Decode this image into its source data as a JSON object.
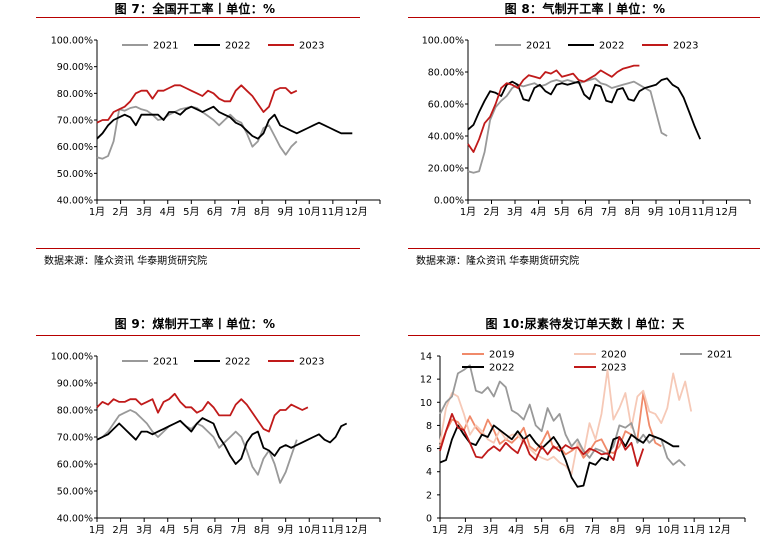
{
  "source_text": "数据来源：隆众资讯 华泰期货研究院",
  "colors": {
    "s2019": "#f08a6a",
    "s2020": "#f6c9b7",
    "s2021": "#999999",
    "s2022": "#000000",
    "s2023": "#c01a1a",
    "rule": "#b70000"
  },
  "chart_data": [
    {
      "type": "line",
      "title": "图 7：全国开工率丨单位：%",
      "xlabel": "",
      "ylabel": "",
      "months": [
        "1月",
        "2月",
        "3月",
        "4月",
        "5月",
        "6月",
        "7月",
        "8月",
        "9月",
        "10月",
        "11月",
        "12月"
      ],
      "ylim": [
        0.4,
        1.0
      ],
      "yticks": [
        0.4,
        0.5,
        0.6,
        0.7,
        0.8,
        0.9,
        1.0
      ],
      "ytick_labels": [
        "40.00%",
        "50.00%",
        "60.00%",
        "70.00%",
        "80.00%",
        "90.00%",
        "100.00%"
      ],
      "legend_position": "top",
      "series": [
        {
          "name": "2021",
          "color": "#999999",
          "values": [
            0.56,
            0.555,
            0.565,
            0.62,
            0.74,
            0.735,
            0.745,
            0.75,
            0.74,
            0.735,
            0.72,
            0.7,
            0.705,
            0.72,
            0.73,
            0.74,
            0.745,
            0.75,
            0.745,
            0.73,
            0.715,
            0.7,
            0.68,
            0.7,
            0.72,
            0.7,
            0.69,
            0.65,
            0.6,
            0.62,
            0.67,
            0.68,
            0.64,
            0.6,
            0.57,
            0.6,
            0.62
          ]
        },
        {
          "name": "2022",
          "color": "#000000",
          "values": [
            0.63,
            0.65,
            0.68,
            0.7,
            0.71,
            0.72,
            0.71,
            0.68,
            0.72,
            0.72,
            0.72,
            0.72,
            0.7,
            0.73,
            0.73,
            0.72,
            0.74,
            0.75,
            0.74,
            0.73,
            0.74,
            0.75,
            0.73,
            0.72,
            0.71,
            0.69,
            0.68,
            0.66,
            0.64,
            0.63,
            0.65,
            0.7,
            0.72,
            0.68,
            0.67,
            0.66,
            0.65,
            0.66,
            0.67,
            0.68,
            0.69,
            0.68,
            0.67,
            0.66,
            0.65,
            0.65,
            0.65
          ]
        },
        {
          "name": "2023",
          "color": "#c01a1a",
          "values": [
            0.69,
            0.7,
            0.7,
            0.73,
            0.74,
            0.75,
            0.77,
            0.8,
            0.81,
            0.81,
            0.78,
            0.81,
            0.81,
            0.82,
            0.83,
            0.83,
            0.82,
            0.81,
            0.8,
            0.79,
            0.81,
            0.8,
            0.78,
            0.77,
            0.77,
            0.81,
            0.83,
            0.81,
            0.79,
            0.76,
            0.73,
            0.75,
            0.81,
            0.82,
            0.82,
            0.8,
            0.81
          ]
        }
      ]
    },
    {
      "type": "line",
      "title": "图 8：气制开工率丨单位：%",
      "xlabel": "",
      "ylabel": "",
      "months": [
        "1月",
        "2月",
        "3月",
        "4月",
        "5月",
        "6月",
        "7月",
        "8月",
        "9月",
        "10月",
        "11月",
        "12月"
      ],
      "ylim": [
        0.0,
        1.0
      ],
      "yticks": [
        0,
        0.2,
        0.4,
        0.6,
        0.8,
        1.0
      ],
      "ytick_labels": [
        "0.00%",
        "20.00%",
        "40.00%",
        "60.00%",
        "80.00%",
        "100.00%"
      ],
      "legend_position": "top",
      "series": [
        {
          "name": "2021",
          "color": "#999999",
          "values": [
            0.18,
            0.17,
            0.18,
            0.3,
            0.5,
            0.58,
            0.62,
            0.65,
            0.7,
            0.72,
            0.71,
            0.72,
            0.73,
            0.71,
            0.72,
            0.74,
            0.75,
            0.74,
            0.75,
            0.74,
            0.73,
            0.74,
            0.75,
            0.76,
            0.73,
            0.72,
            0.7,
            0.71,
            0.72,
            0.73,
            0.74,
            0.72,
            0.7,
            0.68,
            0.55,
            0.42,
            0.4
          ]
        },
        {
          "name": "2022",
          "color": "#000000",
          "values": [
            0.44,
            0.47,
            0.55,
            0.62,
            0.68,
            0.67,
            0.65,
            0.72,
            0.74,
            0.72,
            0.63,
            0.62,
            0.7,
            0.72,
            0.68,
            0.66,
            0.72,
            0.73,
            0.72,
            0.73,
            0.74,
            0.66,
            0.63,
            0.72,
            0.71,
            0.62,
            0.61,
            0.69,
            0.7,
            0.63,
            0.62,
            0.68,
            0.7,
            0.71,
            0.72,
            0.75,
            0.76,
            0.72,
            0.7,
            0.64,
            0.55,
            0.46,
            0.38
          ]
        },
        {
          "name": "2023",
          "color": "#c01a1a",
          "values": [
            0.35,
            0.3,
            0.38,
            0.48,
            0.52,
            0.6,
            0.7,
            0.73,
            0.72,
            0.7,
            0.75,
            0.78,
            0.77,
            0.76,
            0.8,
            0.79,
            0.81,
            0.77,
            0.78,
            0.79,
            0.75,
            0.74,
            0.76,
            0.78,
            0.81,
            0.79,
            0.77,
            0.8,
            0.82,
            0.83,
            0.84,
            0.84
          ]
        }
      ]
    },
    {
      "type": "line",
      "title": "图 9：煤制开工率丨单位：%",
      "xlabel": "",
      "ylabel": "",
      "months": [
        "1月",
        "2月",
        "3月",
        "4月",
        "5月",
        "6月",
        "7月",
        "8月",
        "9月",
        "10月",
        "11月",
        "12月"
      ],
      "ylim": [
        0.4,
        1.0
      ],
      "yticks": [
        0.4,
        0.5,
        0.6,
        0.7,
        0.8,
        0.9,
        1.0
      ],
      "ytick_labels": [
        "40.00%",
        "50.00%",
        "60.00%",
        "70.00%",
        "80.00%",
        "90.00%",
        "100.00%"
      ],
      "legend_position": "top",
      "series": [
        {
          "name": "2021",
          "color": "#999999",
          "values": [
            0.69,
            0.7,
            0.72,
            0.75,
            0.78,
            0.79,
            0.8,
            0.79,
            0.77,
            0.75,
            0.72,
            0.7,
            0.72,
            0.74,
            0.75,
            0.76,
            0.74,
            0.73,
            0.75,
            0.74,
            0.72,
            0.7,
            0.66,
            0.68,
            0.7,
            0.72,
            0.7,
            0.65,
            0.59,
            0.56,
            0.62,
            0.65,
            0.6,
            0.53,
            0.57,
            0.63,
            0.69
          ]
        },
        {
          "name": "2022",
          "color": "#000000",
          "values": [
            0.69,
            0.7,
            0.71,
            0.73,
            0.75,
            0.73,
            0.71,
            0.69,
            0.72,
            0.72,
            0.71,
            0.72,
            0.73,
            0.74,
            0.75,
            0.76,
            0.74,
            0.72,
            0.75,
            0.77,
            0.76,
            0.75,
            0.7,
            0.67,
            0.63,
            0.6,
            0.62,
            0.68,
            0.71,
            0.72,
            0.66,
            0.65,
            0.63,
            0.66,
            0.67,
            0.66,
            0.67,
            0.68,
            0.69,
            0.7,
            0.71,
            0.69,
            0.68,
            0.7,
            0.74,
            0.75
          ]
        },
        {
          "name": "2023",
          "color": "#c01a1a",
          "values": [
            0.81,
            0.83,
            0.82,
            0.84,
            0.83,
            0.83,
            0.84,
            0.84,
            0.82,
            0.83,
            0.84,
            0.79,
            0.83,
            0.84,
            0.86,
            0.83,
            0.81,
            0.81,
            0.79,
            0.8,
            0.83,
            0.81,
            0.78,
            0.78,
            0.78,
            0.82,
            0.84,
            0.82,
            0.79,
            0.76,
            0.73,
            0.72,
            0.78,
            0.8,
            0.8,
            0.82,
            0.81,
            0.8,
            0.81
          ]
        }
      ]
    },
    {
      "type": "line",
      "title": "图 10:尿素待发订单天数丨单位：天",
      "xlabel": "",
      "ylabel": "",
      "months": [
        "1月",
        "2月",
        "3月",
        "4月",
        "5月",
        "6月",
        "7月",
        "8月",
        "9月",
        "10月",
        "11月",
        "12月"
      ],
      "ylim": [
        0,
        14
      ],
      "yticks": [
        0,
        2,
        4,
        6,
        8,
        10,
        12,
        14
      ],
      "ytick_labels": [
        "0",
        "2",
        "4",
        "6",
        "8",
        "10",
        "12",
        "14"
      ],
      "legend_position": "top",
      "series": [
        {
          "name": "2019",
          "color": "#f08a6a",
          "values": [
            6.2,
            7.5,
            8.5,
            8.3,
            7.6,
            8.8,
            7.8,
            7.2,
            8.5,
            7.6,
            6.4,
            6.8,
            6.5,
            7.0,
            7.8,
            6.2,
            5.8,
            6.5,
            7.5,
            6.0,
            6.2,
            5.5,
            5.8,
            6.2,
            5.2,
            5.8,
            6.6,
            6.8,
            5.8,
            5.6,
            6.2,
            7.5,
            7.2,
            6.8,
            10.8,
            8.0,
            6.5,
            6.2
          ]
        },
        {
          "name": "2020",
          "color": "#f6c9b7",
          "values": [
            6.5,
            9.5,
            10.8,
            10.5,
            9.0,
            7.2,
            8.0,
            7.5,
            6.8,
            6.5,
            7.6,
            6.8,
            7.2,
            7.2,
            6.5,
            6.0,
            5.5,
            5.2,
            5.0,
            5.3,
            4.8,
            4.5,
            3.8,
            6.5,
            5.5,
            8.2,
            6.8,
            9.0,
            12.8,
            8.5,
            9.5,
            10.8,
            7.8,
            10.5,
            11.0,
            9.2,
            9.0,
            8.2,
            9.5,
            12.5,
            10.2,
            11.8,
            9.2
          ]
        },
        {
          "name": "2021",
          "color": "#999999",
          "values": [
            9.0,
            10.0,
            10.5,
            12.5,
            12.8,
            13.2,
            11.0,
            10.8,
            11.3,
            10.5,
            11.8,
            11.3,
            9.3,
            9.0,
            8.5,
            9.8,
            8.0,
            7.5,
            9.5,
            8.4,
            9.0,
            7.2,
            6.2,
            6.8,
            5.8,
            5.2,
            6.0,
            5.8,
            5.5,
            6.2,
            8.0,
            7.8,
            8.2,
            6.5,
            7.2,
            6.5,
            7.0,
            6.8,
            5.2,
            4.6,
            5.0,
            4.5
          ]
        },
        {
          "name": "2022",
          "color": "#000000",
          "values": [
            4.8,
            5.0,
            6.8,
            8.0,
            7.2,
            6.5,
            6.3,
            7.2,
            7.0,
            8.0,
            7.6,
            7.2,
            6.8,
            7.5,
            6.8,
            7.2,
            6.5,
            6.0,
            6.5,
            7.0,
            6.2,
            5.0,
            3.5,
            2.7,
            2.8,
            4.8,
            4.6,
            5.2,
            5.0,
            6.8,
            7.0,
            6.2,
            7.2,
            6.8,
            6.5,
            7.2,
            7.0,
            6.8,
            6.5,
            6.2,
            6.2
          ]
        },
        {
          "name": "2023",
          "color": "#c01a1a",
          "values": [
            5.8,
            7.5,
            9.0,
            7.8,
            7.6,
            6.5,
            5.3,
            5.2,
            5.8,
            6.2,
            5.8,
            6.5,
            6.0,
            5.6,
            6.8,
            5.5,
            5.0,
            6.2,
            5.5,
            6.2,
            5.8,
            6.3,
            6.0,
            6.1,
            5.5,
            6.0,
            5.8,
            5.5,
            5.6,
            5.0,
            7.0,
            5.9,
            6.5,
            4.5,
            6.0
          ]
        }
      ]
    }
  ]
}
